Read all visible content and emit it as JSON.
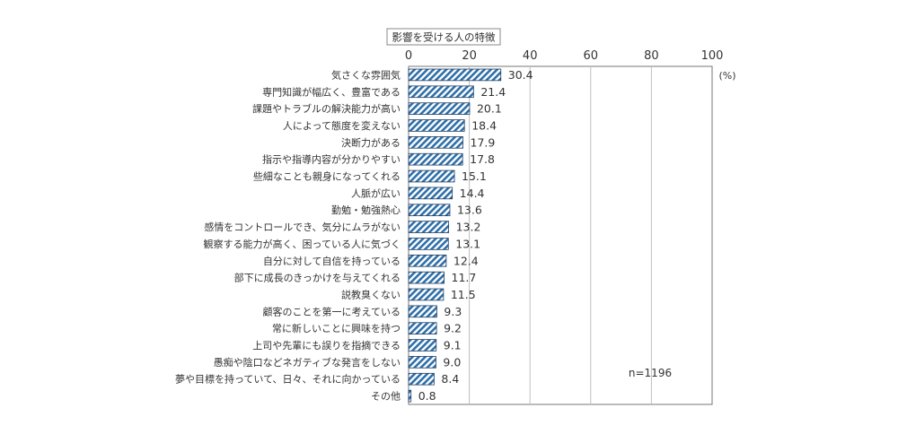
{
  "chart_data": {
    "type": "bar",
    "orientation": "horizontal",
    "title": "影響を受ける人の特徴",
    "unit": "(%)",
    "note": "n=1196",
    "xlim": [
      0,
      100
    ],
    "ticks": [
      0,
      20,
      40,
      60,
      80,
      100
    ],
    "grid": true,
    "colors": {
      "bar_fill": "#2f6fa8",
      "bar_stroke": "#1f3f66",
      "grid": "#bfbfbf",
      "axis": "#777777"
    },
    "categories": [
      "気さくな雰囲気",
      "専門知識が幅広く、豊富である",
      "課題やトラブルの解決能力が高い",
      "人によって態度を変えない",
      "決断力がある",
      "指示や指導内容が分かりやすい",
      "些細なことも親身になってくれる",
      "人脈が広い",
      "勤勉・勉強熱心",
      "感情をコントロールでき、気分にムラがない",
      "観察する能力が高く、困っている人に気づく",
      "自分に対して自信を持っている",
      "部下に成長のきっかけを与えてくれる",
      "説教臭くない",
      "顧客のことを第一に考えている",
      "常に新しいことに興味を持つ",
      "上司や先輩にも誤りを指摘できる",
      "愚痴や陰口などネガティブな発言をしない",
      "夢や目標を持っていて、日々、それに向かっている",
      "その他"
    ],
    "values": [
      30.4,
      21.4,
      20.1,
      18.4,
      17.9,
      17.8,
      15.1,
      14.4,
      13.6,
      13.2,
      13.1,
      12.4,
      11.7,
      11.5,
      9.3,
      9.2,
      9.1,
      9.0,
      8.4,
      0.8
    ],
    "labels": [
      "30.4",
      "21.4",
      "20.1",
      "18.4",
      "17.9",
      "17.8",
      "15.1",
      "14.4",
      "13.6",
      "13.2",
      "13.1",
      "12.4",
      "11.7",
      "11.5",
      "9.3",
      "9.2",
      "9.1",
      "9.0",
      "8.4",
      "0.8"
    ]
  }
}
